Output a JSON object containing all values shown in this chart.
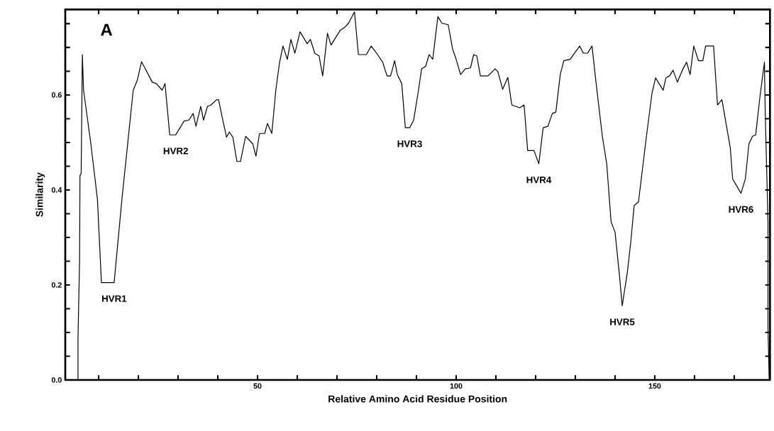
{
  "chart_data": {
    "type": "line",
    "xlabel": "Relative Amino Acid Residue Position",
    "ylabel": "Similarity",
    "xlim": [
      1.6,
      179
    ],
    "ylim": [
      0,
      0.78
    ],
    "xticks": [
      {
        "value": 10,
        "label": null
      },
      {
        "value": 20,
        "label": null
      },
      {
        "value": 30,
        "label": null
      },
      {
        "value": 40,
        "label": null
      },
      50,
      {
        "value": 60,
        "label": null
      },
      {
        "value": 70,
        "label": null
      },
      {
        "value": 80,
        "label": null
      },
      {
        "value": 90,
        "label": null
      },
      100,
      {
        "value": 110,
        "label": null
      },
      {
        "value": 120,
        "label": null
      },
      {
        "value": 130,
        "label": null
      },
      {
        "value": 140,
        "label": null
      },
      150,
      {
        "value": 160,
        "label": null
      },
      {
        "value": 170,
        "label": null
      }
    ],
    "yticks": [
      {
        "value": 0,
        "label": "0.0"
      },
      {
        "value": 0.05,
        "label": null
      },
      {
        "value": 0.1,
        "label": null
      },
      {
        "value": 0.15,
        "label": null
      },
      {
        "value": 0.2,
        "label": "0.2"
      },
      {
        "value": 0.25,
        "label": null
      },
      {
        "value": 0.3,
        "label": null
      },
      {
        "value": 0.35,
        "label": null
      },
      {
        "value": 0.4,
        "label": "0.4"
      },
      {
        "value": 0.45,
        "label": null
      },
      {
        "value": 0.5,
        "label": null
      },
      {
        "value": 0.55,
        "label": null
      },
      {
        "value": 0.6,
        "label": "0.6"
      },
      {
        "value": 0.65,
        "label": null
      },
      {
        "value": 0.7,
        "label": null
      },
      {
        "value": 0.75,
        "label": null
      }
    ],
    "annotations": [
      "A",
      {
        "text": "HVR1",
        "x": 13.9,
        "y": 0.205
      },
      {
        "text": "HVR2",
        "x": 29.4,
        "y": 0.516
      },
      {
        "text": "HVR3",
        "x": 88.3,
        "y": 0.531
      },
      {
        "text": "HVR4",
        "x": 120.8,
        "y": 0.455
      },
      {
        "text": "HVR5",
        "x": 141.8,
        "y": 0.156
      },
      {
        "text": "HVR6",
        "x": 171.7,
        "y": 0.393
      }
    ],
    "series": [
      {
        "color": "#000000",
        "x": [
          4.8,
          4.8,
          5.2,
          5.3,
          5.6,
          5.9,
          6.2,
          8,
          9.7,
          10.7,
          13.9,
          15.9,
          17.1,
          18.7,
          19.7,
          20.8,
          23.5,
          24.5,
          26,
          26.7,
          27.9,
          29.4,
          31.5,
          32.7,
          33.8,
          34.5,
          35.7,
          36.4,
          37.4,
          38.3,
          39.7,
          40.2,
          41.1,
          42.2,
          42.9,
          43.8,
          44.8,
          45.7,
          47,
          48.8,
          49.6,
          50.5,
          51.8,
          52.5,
          53.6,
          54.6,
          55.5,
          56.4,
          57.5,
          58.4,
          59.4,
          60.7,
          62.5,
          63.3,
          64.4,
          65.5,
          66.4,
          67.6,
          68.5,
          70.8,
          71.9,
          72.9,
          74.4,
          75.4,
          77.4,
          78.6,
          79.7,
          81.5,
          82.6,
          83.5,
          84.5,
          85.2,
          86.3,
          87.2,
          88.3,
          89.3,
          90.4,
          91.3,
          92.3,
          93.2,
          94.1,
          95.4,
          96.4,
          98,
          99.1,
          100,
          101.1,
          102.3,
          103.6,
          104.4,
          105.2,
          106.1,
          108,
          109.8,
          110.5,
          111.7,
          113,
          114,
          116,
          117.1,
          118,
          119.6,
          120.8,
          121.9,
          123.1,
          124.2,
          125.1,
          126.2,
          127.1,
          128.7,
          131.1,
          132,
          133.1,
          134.2,
          135.2,
          136.8,
          137.9,
          139,
          140,
          141.1,
          141.8,
          143.1,
          144,
          144.8,
          145.9,
          147.9,
          149.3,
          150.2,
          152.1,
          152.8,
          153.7,
          154.6,
          155.7,
          157.1,
          158,
          158.9,
          159.8,
          161,
          162.1,
          162.8,
          164.8,
          165.8,
          166.9,
          168,
          169,
          169.6,
          171.7,
          172.8,
          173.7,
          174.6,
          175.4,
          176.5,
          177.6,
          177.8,
          178.5,
          178.5,
          178.8
        ],
        "values": [
          0,
          0.086,
          0.25,
          0.43,
          0.435,
          0.685,
          0.61,
          0.5,
          0.38,
          0.205,
          0.205,
          0.384,
          0.48,
          0.61,
          0.63,
          0.67,
          0.627,
          0.624,
          0.61,
          0.624,
          0.516,
          0.516,
          0.545,
          0.547,
          0.561,
          0.534,
          0.576,
          0.547,
          0.576,
          0.579,
          0.59,
          0.59,
          0.553,
          0.511,
          0.522,
          0.511,
          0.46,
          0.46,
          0.513,
          0.497,
          0.471,
          0.519,
          0.519,
          0.54,
          0.519,
          0.61,
          0.666,
          0.703,
          0.675,
          0.717,
          0.688,
          0.733,
          0.708,
          0.717,
          0.688,
          0.682,
          0.64,
          0.73,
          0.705,
          0.736,
          0.742,
          0.751,
          0.775,
          0.685,
          0.685,
          0.703,
          0.691,
          0.669,
          0.64,
          0.64,
          0.672,
          0.643,
          0.624,
          0.531,
          0.531,
          0.547,
          0.604,
          0.655,
          0.66,
          0.685,
          0.675,
          0.765,
          0.751,
          0.748,
          0.697,
          0.675,
          0.643,
          0.655,
          0.657,
          0.685,
          0.682,
          0.64,
          0.64,
          0.655,
          0.649,
          0.612,
          0.637,
          0.579,
          0.573,
          0.579,
          0.483,
          0.483,
          0.455,
          0.531,
          0.534,
          0.561,
          0.564,
          0.643,
          0.672,
          0.675,
          0.703,
          0.688,
          0.688,
          0.703,
          0.627,
          0.513,
          0.455,
          0.333,
          0.311,
          0.221,
          0.156,
          0.227,
          0.294,
          0.367,
          0.375,
          0.513,
          0.604,
          0.636,
          0.61,
          0.636,
          0.64,
          0.652,
          0.627,
          0.655,
          0.669,
          0.643,
          0.703,
          0.672,
          0.672,
          0.703,
          0.703,
          0.579,
          0.59,
          0.537,
          0.489,
          0.423,
          0.393,
          0.423,
          0.497,
          0.513,
          0.516,
          0.598,
          0.669,
          0.564,
          0.333,
          0.108,
          0
        ]
      }
    ]
  }
}
